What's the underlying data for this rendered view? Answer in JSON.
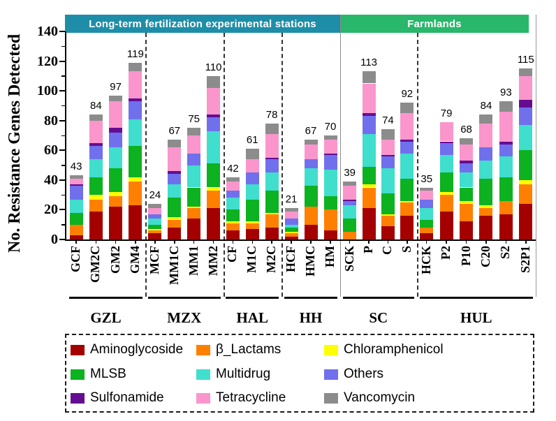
{
  "header": {
    "sections": [
      {
        "label": "Long-term fertilization experimental stations",
        "color": "#1E8EA8"
      },
      {
        "label": "Farmlands",
        "color": "#28B76B"
      }
    ]
  },
  "chart_data": {
    "type": "bar",
    "stacked": true,
    "title": "",
    "xlabel": "",
    "ylabel": "No. Resistance Genes Detected",
    "ylim": [
      0,
      140
    ],
    "yticks": [
      0,
      20,
      40,
      60,
      80,
      100,
      120,
      140
    ],
    "yticks_minor": [
      10,
      30,
      50,
      70,
      90,
      110,
      130
    ],
    "grid": false,
    "legend_position": "bottom",
    "series_order": [
      "Aminoglycoside",
      "β_Lactams",
      "Chloramphenicol",
      "MLSB",
      "Multidrug",
      "Others",
      "Sulfonamide",
      "Tetracycline",
      "Vancomycin"
    ],
    "colors": {
      "Aminoglycoside": "#A40000",
      "β_Lactams": "#FF8000",
      "Chloramphenicol": "#FFFF00",
      "MLSB": "#0CB21F",
      "Multidrug": "#40DECC",
      "Others": "#7070EC",
      "Sulfonamide": "#650D92",
      "Tetracycline": "#FA96CC",
      "Vancomycin": "#8C8C8C"
    },
    "groups": [
      {
        "label": "GZL",
        "section": "Long-term fertilization experimental stations",
        "bars": [
          {
            "label": "GCF",
            "total": 43,
            "values": [
              3,
              7,
              0,
              8,
              9,
              9,
              1,
              4,
              2
            ]
          },
          {
            "label": "GM2C",
            "total": 84,
            "values": [
              19,
              8,
              3,
              12,
              12,
              9,
              2,
              15,
              4
            ]
          },
          {
            "label": "GM2",
            "total": 97,
            "values": [
              22,
              7,
              3,
              16,
              14,
              10,
              3,
              18,
              4
            ]
          },
          {
            "label": "GM4",
            "total": 119,
            "values": [
              23,
              16,
              3,
              21,
              18,
              12,
              2,
              18,
              6
            ]
          }
        ]
      },
      {
        "label": "MZX",
        "section": "Long-term fertilization experimental stations",
        "bars": [
          {
            "label": "MCF",
            "total": 24,
            "values": [
              4,
              2,
              1,
              3,
              4,
              3,
              0,
              4,
              3
            ]
          },
          {
            "label": "MM1C",
            "total": 67,
            "values": [
              8,
              5,
              2,
              13,
              9,
              7,
              2,
              16,
              5
            ]
          },
          {
            "label": "MM1",
            "total": 75,
            "values": [
              14,
              7,
              1,
              13,
              15,
              8,
              0,
              12,
              5
            ]
          },
          {
            "label": "MM2",
            "total": 110,
            "values": [
              21,
              12,
              2,
              16,
              22,
              9,
              2,
              18,
              8
            ]
          }
        ]
      },
      {
        "label": "HAL",
        "section": "Long-term fertilization experimental stations",
        "bars": [
          {
            "label": "CF",
            "total": 42,
            "values": [
              6,
              5,
              1,
              8,
              8,
              5,
              0,
              6,
              3
            ]
          },
          {
            "label": "M1C",
            "total": 61,
            "values": [
              7,
              4,
              1,
              15,
              10,
              8,
              0,
              9,
              7
            ]
          },
          {
            "label": "M2C",
            "total": 78,
            "values": [
              8,
              9,
              1,
              15,
              12,
              9,
              1,
              16,
              7
            ]
          }
        ]
      },
      {
        "label": "HH",
        "section": "Long-term fertilization experimental stations",
        "bars": [
          {
            "label": "HCF",
            "total": 21,
            "values": [
              2,
              2,
              1,
              3,
              2,
              4,
              0,
              5,
              2
            ]
          },
          {
            "label": "HMC",
            "total": 67,
            "values": [
              10,
              12,
              0,
              14,
              12,
              6,
              0,
              10,
              3
            ]
          },
          {
            "label": "HM",
            "total": 70,
            "values": [
              6,
              14,
              0,
              9,
              18,
              10,
              1,
              9,
              3
            ]
          }
        ]
      },
      {
        "label": "SC",
        "section": "Farmlands",
        "bars": [
          {
            "label": "SCK",
            "total": 39,
            "values": [
              0,
              5,
              0,
              9,
              9,
              3,
              1,
              9,
              3
            ]
          },
          {
            "label": "P",
            "total": 113,
            "values": [
              21,
              14,
              2,
              12,
              22,
              12,
              2,
              20,
              8
            ]
          },
          {
            "label": "C",
            "total": 74,
            "values": [
              9,
              7,
              1,
              14,
              17,
              8,
              1,
              10,
              7
            ]
          },
          {
            "label": "S",
            "total": 92,
            "values": [
              16,
              9,
              1,
              15,
              17,
              8,
              1,
              18,
              7
            ]
          }
        ]
      },
      {
        "label": "HUL",
        "section": "Farmlands",
        "bars": [
          {
            "label": "HCK",
            "total": 35,
            "values": [
              4,
              4,
              0,
              5,
              8,
              6,
              0,
              6,
              2
            ]
          },
          {
            "label": "P2",
            "total": 79,
            "values": [
              19,
              11,
              2,
              13,
              12,
              8,
              1,
              13,
              0
            ]
          },
          {
            "label": "P10",
            "total": 68,
            "values": [
              12,
              12,
              2,
              9,
              10,
              6,
              2,
              11,
              4
            ]
          },
          {
            "label": "C20",
            "total": 84,
            "values": [
              16,
              5,
              2,
              18,
              12,
              9,
              0,
              16,
              6
            ]
          },
          {
            "label": "S2",
            "total": 93,
            "values": [
              17,
              9,
              0,
              16,
              14,
              8,
              2,
              20,
              7
            ]
          },
          {
            "label": "S2P1",
            "total": 115,
            "values": [
              24,
              13,
              3,
              20,
              17,
              12,
              5,
              16,
              5
            ]
          }
        ]
      }
    ]
  },
  "legend": {
    "columns": [
      [
        "Aminoglycoside",
        "MLSB",
        "Sulfonamide"
      ],
      [
        "β_Lactams",
        "Multidrug",
        "Tetracycline"
      ],
      [
        "Chloramphenicol",
        "Others",
        "Vancomycin"
      ]
    ]
  }
}
